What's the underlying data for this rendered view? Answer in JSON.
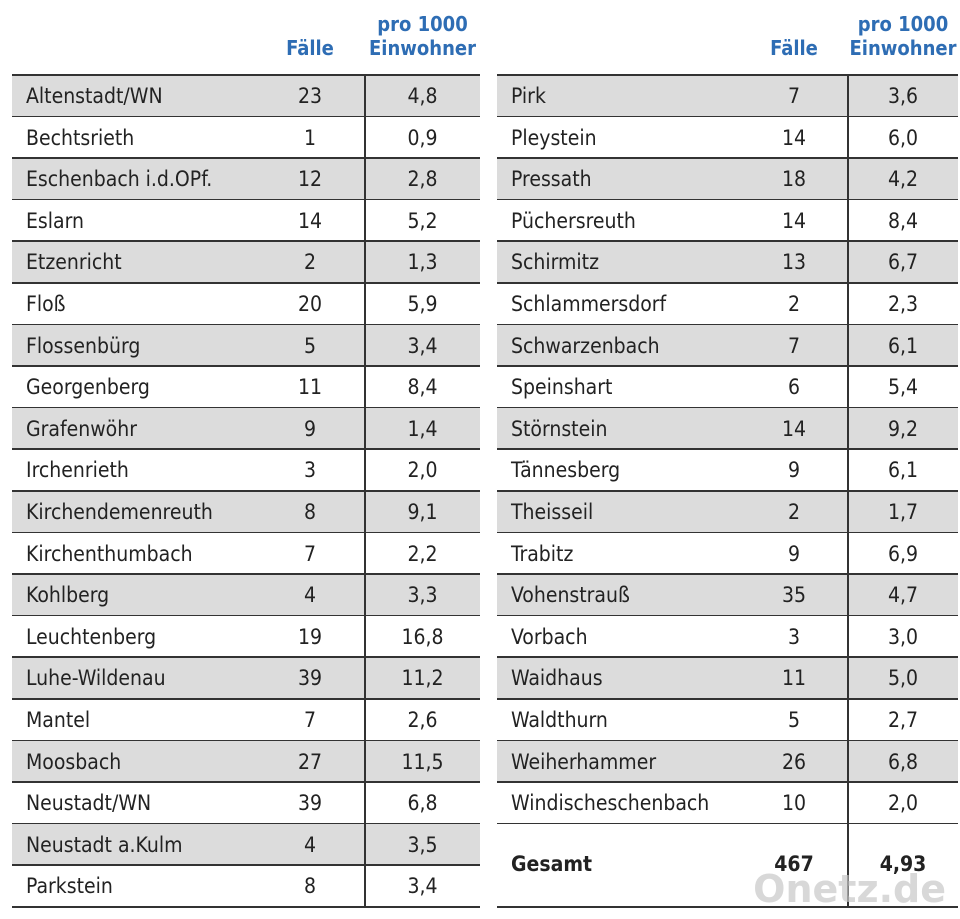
{
  "left": {
    "header": {
      "cases": "Fälle",
      "rate_line1": "pro 1000",
      "rate_line2": "Einwohner"
    },
    "rows": [
      [
        "Altenstadt/WN",
        "23",
        "4,8"
      ],
      [
        "Bechtsrieth",
        "1",
        "0,9"
      ],
      [
        "Eschenbach i.d.OPf.",
        "12",
        "2,8"
      ],
      [
        "Eslarn",
        "14",
        "5,2"
      ],
      [
        "Etzenricht",
        "2",
        "1,3"
      ],
      [
        "Floß",
        "20",
        "5,9"
      ],
      [
        "Flossenbürg",
        "5",
        "3,4"
      ],
      [
        "Georgenberg",
        "11",
        "8,4"
      ],
      [
        "Grafenwöhr",
        "9",
        "1,4"
      ],
      [
        "Irchenrieth",
        "3",
        "2,0"
      ],
      [
        "Kirchendemenreuth",
        "8",
        "9,1"
      ],
      [
        "Kirchenthumbach",
        "7",
        "2,2"
      ],
      [
        "Kohlberg",
        "4",
        "3,3"
      ],
      [
        "Leuchtenberg",
        "19",
        "16,8"
      ],
      [
        "Luhe-Wildenau",
        "39",
        "11,2"
      ],
      [
        "Mantel",
        "7",
        "2,6"
      ],
      [
        "Moosbach",
        "27",
        "11,5"
      ],
      [
        "Neustadt/WN",
        "39",
        "6,8"
      ],
      [
        "Neustadt a.Kulm",
        "4",
        "3,5"
      ],
      [
        "Parkstein",
        "8",
        "3,4"
      ]
    ]
  },
  "right": {
    "header": {
      "cases": "Fälle",
      "rate_line1": "pro 1000",
      "rate_line2": "Einwohner"
    },
    "rows": [
      [
        "Pirk",
        "7",
        "3,6"
      ],
      [
        "Pleystein",
        "14",
        "6,0"
      ],
      [
        "Pressath",
        "18",
        "4,2"
      ],
      [
        "Püchersreuth",
        "14",
        "8,4"
      ],
      [
        "Schirmitz",
        "13",
        "6,7"
      ],
      [
        "Schlammersdorf",
        "2",
        "2,3"
      ],
      [
        "Schwarzenbach",
        "7",
        "6,1"
      ],
      [
        "Speinshart",
        "6",
        "5,4"
      ],
      [
        "Störnstein",
        "14",
        "9,2"
      ],
      [
        "Tännesberg",
        "9",
        "6,1"
      ],
      [
        "Theisseil",
        "2",
        "1,7"
      ],
      [
        "Trabitz",
        "9",
        "6,9"
      ],
      [
        "Vohenstrauß",
        "35",
        "4,7"
      ],
      [
        "Vorbach",
        "3",
        "3,0"
      ],
      [
        "Waidhaus",
        "11",
        "5,0"
      ],
      [
        "Waldthurn",
        "5",
        "2,7"
      ],
      [
        "Weiherhammer",
        "26",
        "6,8"
      ],
      [
        "Windischeschenbach",
        "10",
        "2,0"
      ]
    ],
    "total": [
      "Gesamt",
      "467",
      "4,93"
    ]
  },
  "watermark": "Onetz.de"
}
